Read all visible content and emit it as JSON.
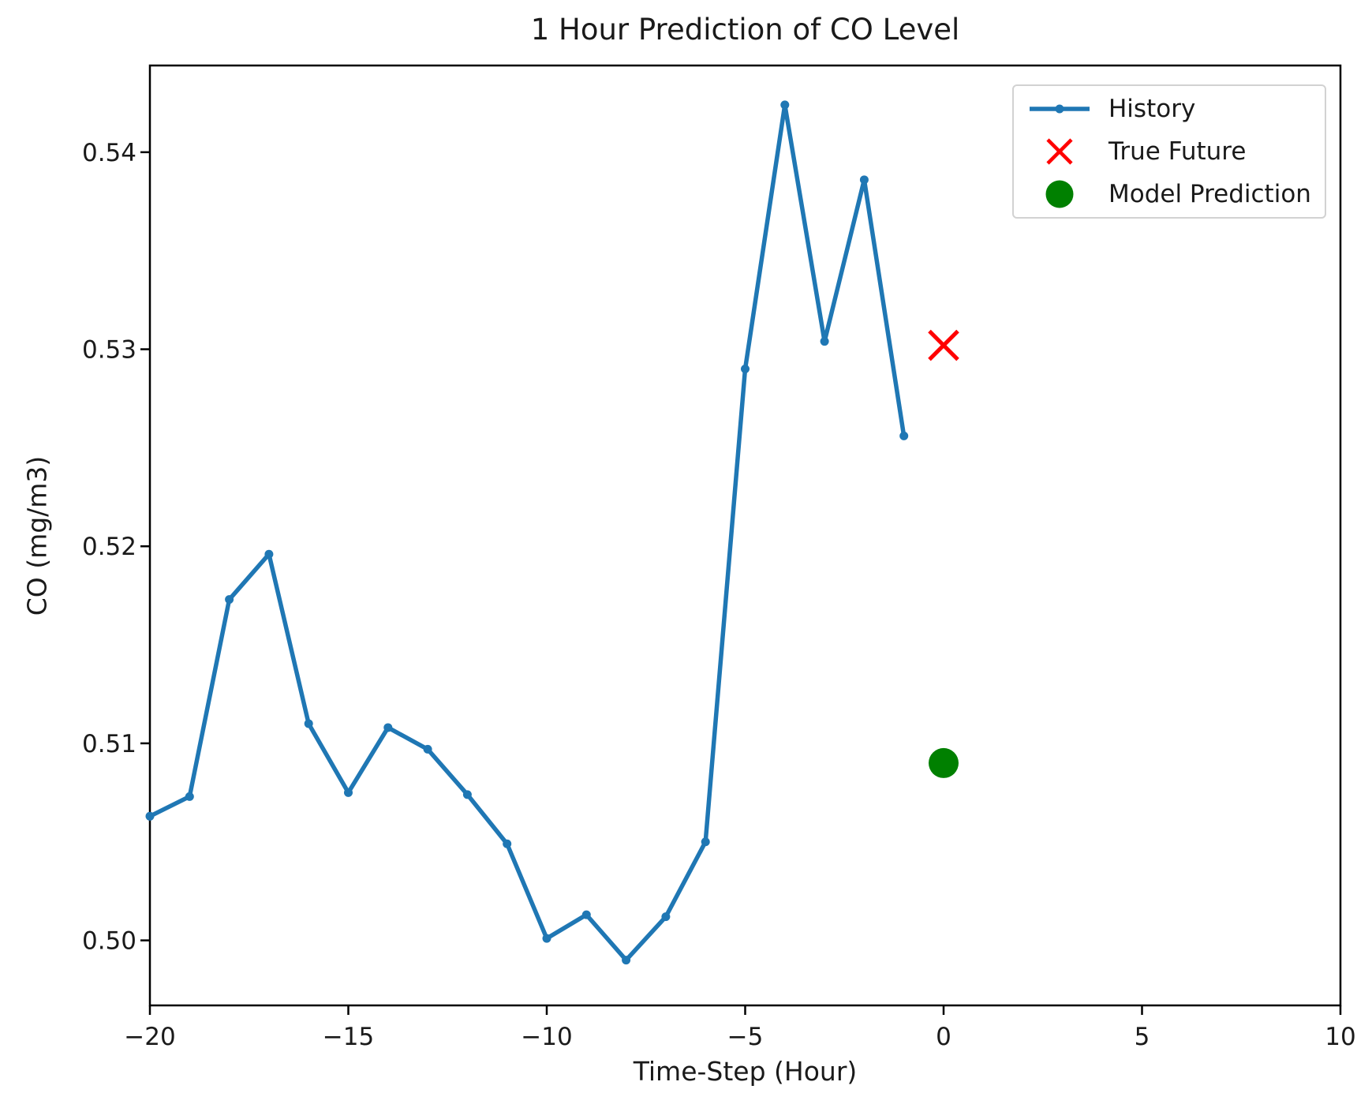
{
  "chart_data": {
    "type": "line",
    "title": "1 Hour Prediction of CO Level",
    "xlabel": "Time-Step (Hour)",
    "ylabel": "CO (mg/m3)",
    "xlim": [
      -20,
      10
    ],
    "ylim": [
      0.4967,
      0.5444
    ],
    "grid": false,
    "legend_position": "upper right",
    "xticks": {
      "values": [
        -20,
        -15,
        -10,
        -5,
        0,
        5,
        10
      ],
      "labels": [
        "−20",
        "−15",
        "−10",
        "−5",
        "0",
        "5",
        "10"
      ]
    },
    "yticks": {
      "values": [
        0.5,
        0.51,
        0.52,
        0.53,
        0.54
      ],
      "labels": [
        "0.50",
        "0.51",
        "0.52",
        "0.53",
        "0.54"
      ]
    },
    "series": [
      {
        "name": "History",
        "type": "line",
        "marker": "point",
        "color": "#1f77b4",
        "x": [
          -20,
          -19,
          -18,
          -17,
          -16,
          -15,
          -14,
          -13,
          -12,
          -11,
          -10,
          -9,
          -8,
          -7,
          -6,
          -5,
          -4,
          -3,
          -2,
          -1
        ],
        "y": [
          0.5063,
          0.5073,
          0.5173,
          0.5196,
          0.511,
          0.5075,
          0.5108,
          0.5097,
          0.5074,
          0.5049,
          0.5001,
          0.5013,
          0.499,
          0.5012,
          0.505,
          0.529,
          0.5424,
          0.5304,
          0.5386,
          0.5256
        ]
      },
      {
        "name": "True Future",
        "type": "scatter",
        "marker": "x",
        "color": "#ff0000",
        "x": [
          0
        ],
        "y": [
          0.5302
        ]
      },
      {
        "name": "Model Prediction",
        "type": "scatter",
        "marker": "circle",
        "color": "#008000",
        "x": [
          0
        ],
        "y": [
          0.509
        ]
      }
    ]
  }
}
